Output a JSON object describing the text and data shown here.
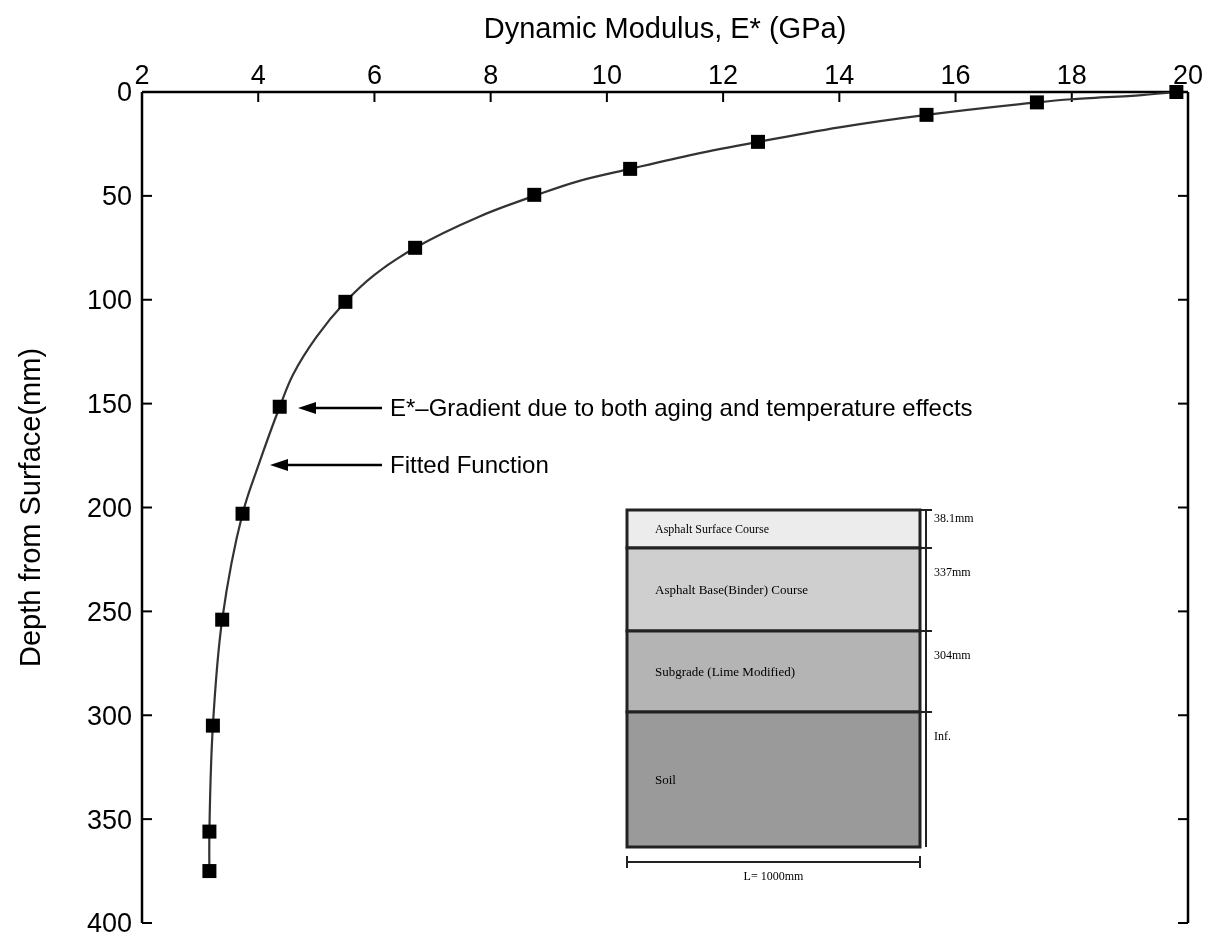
{
  "chart_data": {
    "type": "scatter",
    "xlabel": "Dynamic Modulus, E* (GPa)",
    "ylabel": "Depth from Surface(mm)",
    "xlim": [
      2,
      20
    ],
    "xticks": [
      2,
      4,
      6,
      8,
      10,
      12,
      14,
      16,
      18,
      20
    ],
    "ylim": [
      400,
      0
    ],
    "yticks": [
      0,
      50,
      100,
      150,
      200,
      250,
      300,
      350,
      400
    ],
    "grid": false,
    "series": [
      {
        "type": "line",
        "color": "#333333",
        "x": [
          19.8,
          19.2,
          18,
          17.4,
          15.5,
          14,
          12.6,
          11.5,
          10.4,
          9.5,
          8.8,
          7.8,
          6.7,
          6,
          5.5,
          5,
          4.6,
          4.37,
          4,
          3.73,
          3.38,
          3.22,
          3.16,
          3.16
        ],
        "values": [
          0,
          1.5,
          3.5,
          5,
          11,
          17,
          24,
          30,
          37,
          43,
          49.5,
          60,
          75,
          88,
          101,
          118,
          136,
          151.5,
          180,
          203,
          254,
          305,
          356,
          375
        ]
      },
      {
        "marker": "square",
        "color": "#000000",
        "x": [
          19.8,
          17.4,
          15.5,
          12.6,
          10.4,
          8.75,
          6.7,
          5.5,
          4.37,
          3.73,
          3.38,
          3.22,
          3.16,
          3.16
        ],
        "values": [
          0,
          5,
          11,
          24,
          37,
          49.5,
          75,
          101,
          151.5,
          203,
          254,
          305,
          356,
          375
        ]
      }
    ],
    "annotations": [
      "E*–Gradient due to both aging and temperature effects",
      "Fitted Function",
      "Asphalt Surface Course",
      "38.1mm",
      "Asphalt Base(Binder) Course",
      "337mm",
      "Subgrade (Lime Modified)",
      "304mm",
      "Soil",
      "Inf.",
      "L= 1000mm"
    ]
  }
}
